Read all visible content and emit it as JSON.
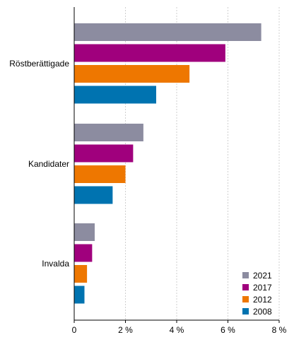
{
  "chart_data": {
    "type": "bar",
    "orientation": "horizontal",
    "title": "",
    "xlabel": "",
    "ylabel": "",
    "categories": [
      "Röstberättigade",
      "Kandidater",
      "Invalda"
    ],
    "series": [
      {
        "name": "2021",
        "color": "#8c8ca0",
        "values": [
          7.3,
          2.7,
          0.8
        ]
      },
      {
        "name": "2017",
        "color": "#a0007d",
        "values": [
          5.9,
          2.3,
          0.7
        ]
      },
      {
        "name": "2012",
        "color": "#ee7700",
        "values": [
          4.5,
          2.0,
          0.5
        ]
      },
      {
        "name": "2008",
        "color": "#0073b0",
        "values": [
          3.2,
          1.5,
          0.4
        ]
      }
    ],
    "xlim": [
      0,
      8
    ],
    "x_ticks": [
      0,
      2,
      4,
      6,
      8
    ],
    "x_tick_labels": [
      "0",
      "2 %",
      "4 %",
      "6 %",
      "8 %"
    ],
    "grid": true,
    "legend_position": "bottom-right"
  }
}
